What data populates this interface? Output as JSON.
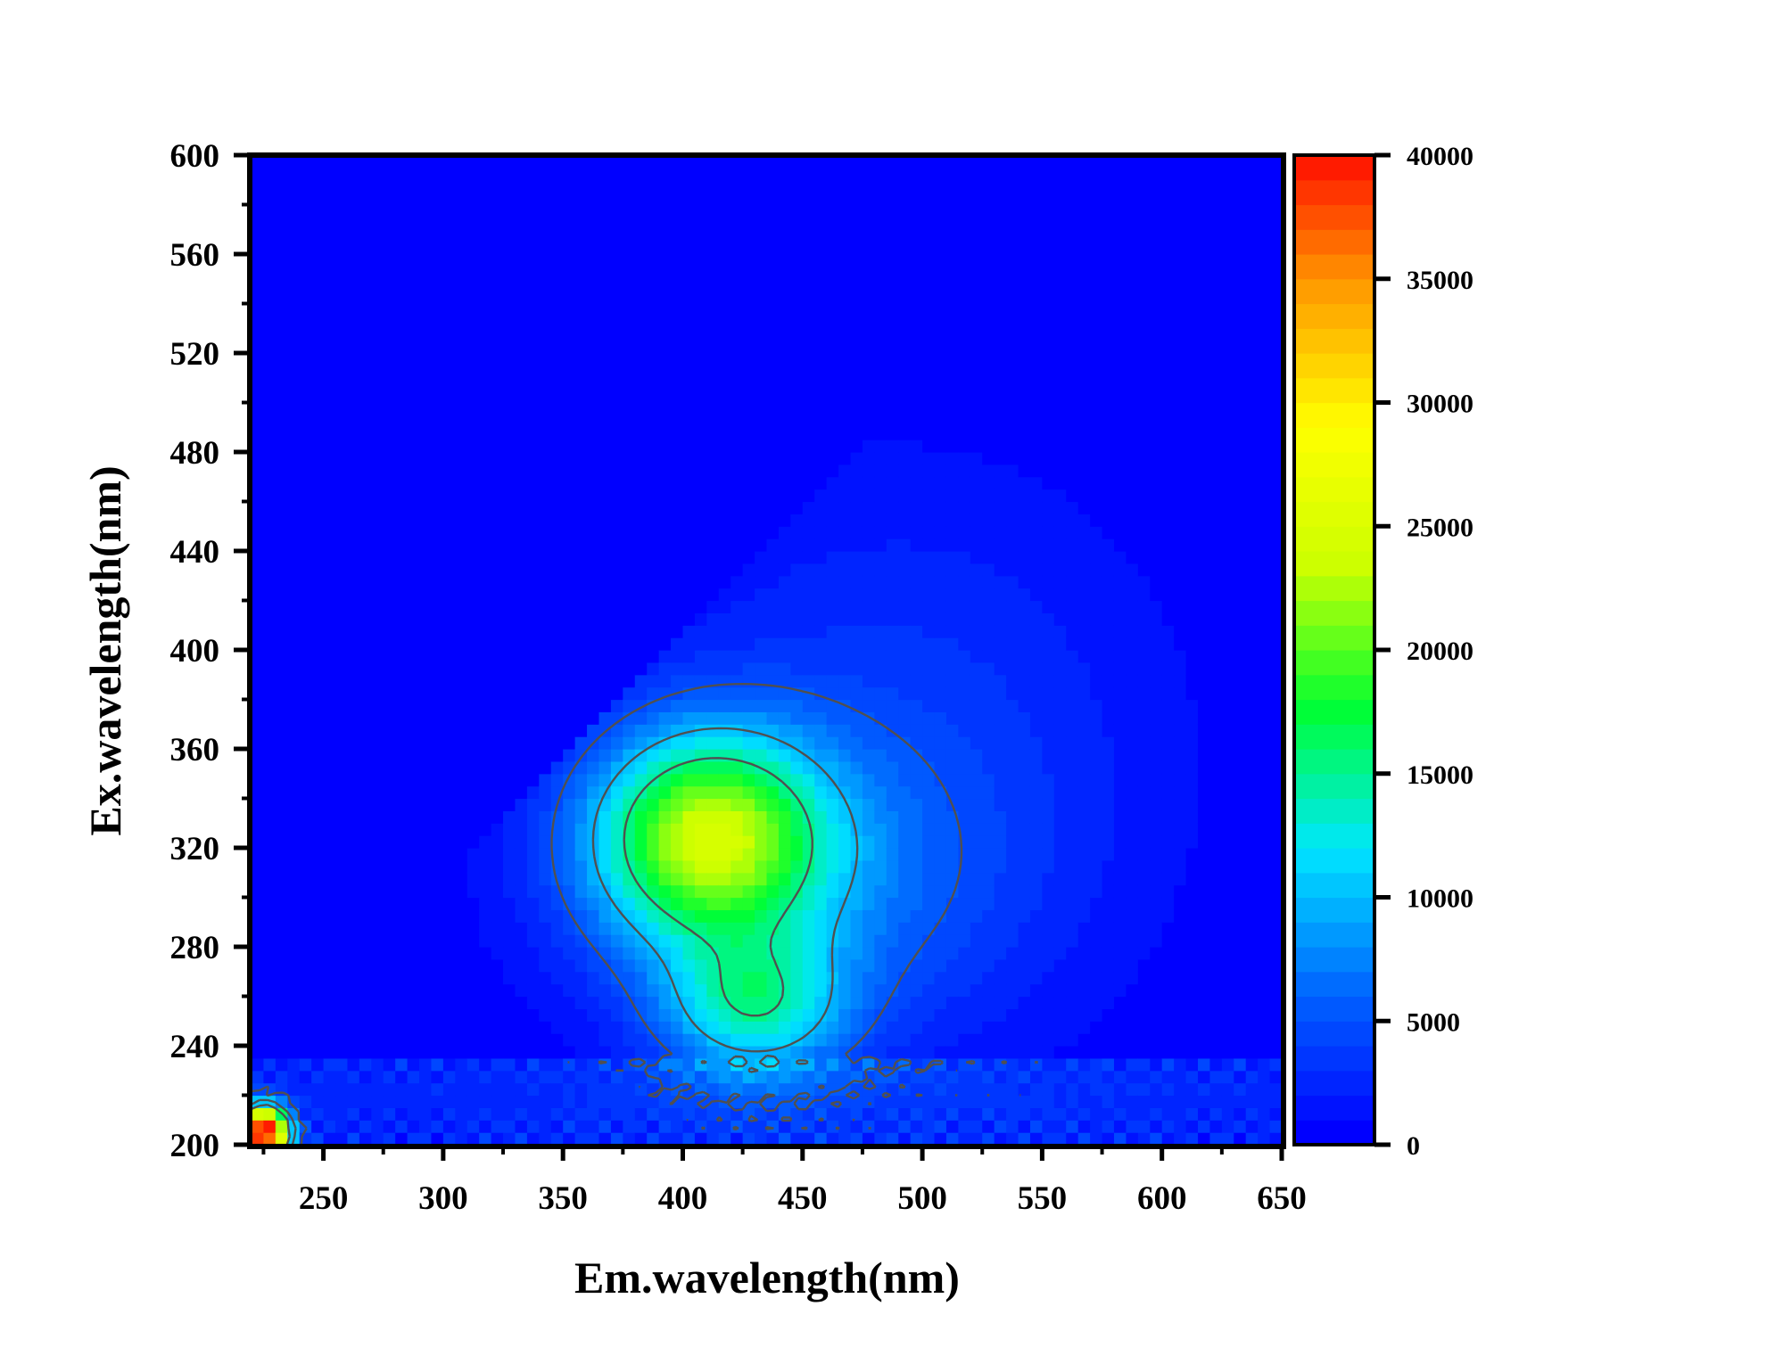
{
  "chart_data": {
    "type": "heatmap",
    "subtype": "contour",
    "xlabel": "Em.wavelength(nm)",
    "ylabel": "Ex.wavelength(nm)",
    "xlim": [
      220,
      650
    ],
    "ylim": [
      200,
      600
    ],
    "xticks": [
      250,
      300,
      350,
      400,
      450,
      500,
      550,
      600,
      650
    ],
    "yticks": [
      200,
      240,
      280,
      320,
      360,
      400,
      440,
      480,
      520,
      560,
      600
    ],
    "colorbar": {
      "min": 0,
      "max": 40000,
      "ticks": [
        0,
        5000,
        10000,
        15000,
        20000,
        25000,
        30000,
        35000,
        40000
      ],
      "colors": [
        "#0000ff",
        "#0066ff",
        "#00e6ff",
        "#00ff33",
        "#ccff00",
        "#ffff00",
        "#ff9900",
        "#ff0000"
      ]
    },
    "peaks": [
      {
        "em": 410,
        "ex": 325,
        "intensity": 19500
      },
      {
        "em": 430,
        "ex": 255,
        "intensity": 11000
      },
      {
        "em": 225,
        "ex": 205,
        "intensity": 40000
      }
    ],
    "background_intensity": 0,
    "contour_levels": [
      5000,
      10000,
      15000
    ]
  }
}
